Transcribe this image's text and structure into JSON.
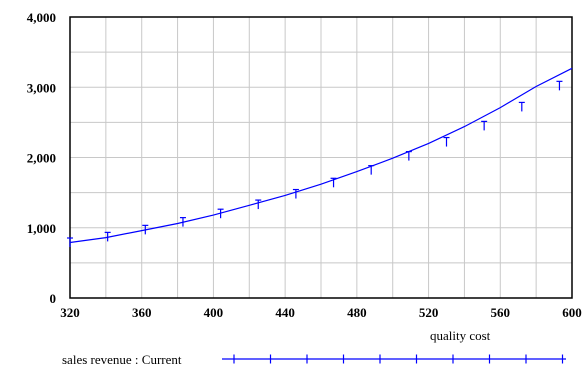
{
  "chart_data": {
    "type": "line",
    "title": "",
    "xlabel": "quality cost",
    "ylabel": "",
    "xlim": [
      320,
      600
    ],
    "ylim": [
      0,
      4000
    ],
    "x_ticks": [
      320,
      360,
      400,
      440,
      480,
      520,
      560,
      600
    ],
    "x_tick_labels": [
      "320",
      "360",
      "400",
      "440",
      "480",
      "520",
      "560",
      "600"
    ],
    "y_ticks": [
      0,
      1000,
      2000,
      3000,
      4000
    ],
    "y_tick_labels": [
      "0",
      "1,000",
      "2,000",
      "3,000",
      "4,000"
    ],
    "grid": true,
    "legend_position": "bottom-left",
    "series": [
      {
        "name": "sales revenue : Current",
        "color": "#0000ff",
        "x": [
          320,
          340,
          360,
          380,
          400,
          420,
          440,
          460,
          480,
          500,
          520,
          540,
          560,
          580,
          600
        ],
        "y": [
          790,
          860,
          960,
          1060,
          1180,
          1320,
          1460,
          1620,
          1800,
          1990,
          2200,
          2440,
          2710,
          3010,
          3270
        ]
      }
    ],
    "markers": {
      "x": [
        320,
        341,
        362,
        383,
        404,
        425,
        446,
        467,
        488,
        509,
        530,
        551,
        572,
        593
      ],
      "y": [
        790,
        870,
        970,
        1080,
        1200,
        1330,
        1480,
        1640,
        1820,
        2020,
        2220,
        2450,
        2720,
        3020
      ]
    }
  }
}
